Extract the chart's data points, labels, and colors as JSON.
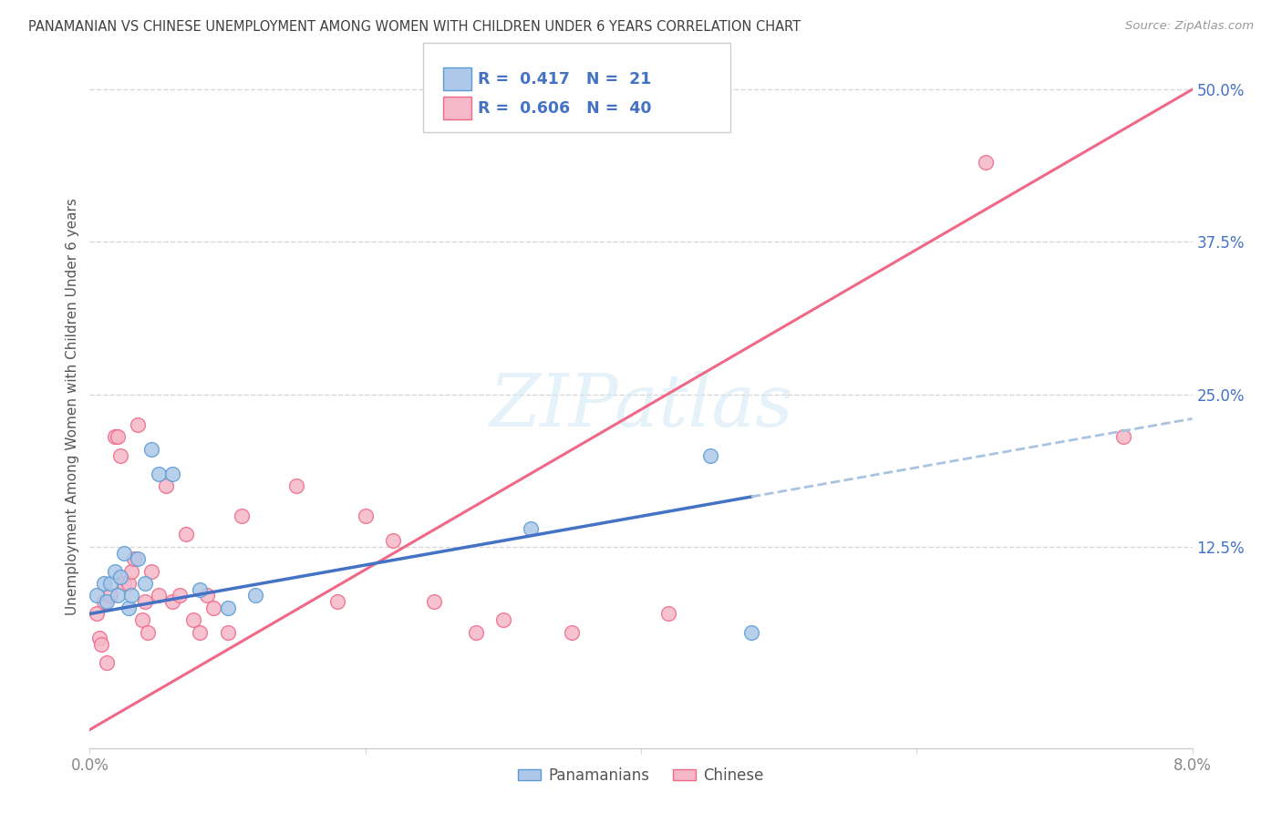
{
  "title": "PANAMANIAN VS CHINESE UNEMPLOYMENT AMONG WOMEN WITH CHILDREN UNDER 6 YEARS CORRELATION CHART",
  "source": "Source: ZipAtlas.com",
  "ylabel": "Unemployment Among Women with Children Under 6 years",
  "xlim": [
    0.0,
    8.0
  ],
  "ylim": [
    -4.0,
    52.0
  ],
  "yticks_right": [
    12.5,
    25.0,
    37.5,
    50.0
  ],
  "ytick_labels_right": [
    "12.5%",
    "25.0%",
    "37.5%",
    "50.0%"
  ],
  "legend_R1": "0.417",
  "legend_N1": "21",
  "legend_R2": "0.606",
  "legend_N2": "40",
  "panamanian_color": "#adc8e8",
  "chinese_color": "#f5b8c8",
  "panamanian_edge_color": "#5b9bd5",
  "chinese_edge_color": "#f06888",
  "panamanian_line_color": "#4472c4",
  "chinese_line_color": "#f06888",
  "blue_dashed_color": "#a8c4e0",
  "pan_line_x0": 0.0,
  "pan_line_y0": 7.0,
  "pan_line_x1": 8.0,
  "pan_line_y1": 23.0,
  "pan_solid_x1": 4.8,
  "chi_line_x0": 0.0,
  "chi_line_y0": -2.5,
  "chi_line_x1": 8.0,
  "chi_line_y1": 50.0,
  "panamanian_x": [
    0.05,
    0.1,
    0.12,
    0.15,
    0.18,
    0.2,
    0.22,
    0.25,
    0.28,
    0.3,
    0.35,
    0.4,
    0.45,
    0.5,
    0.6,
    0.8,
    1.0,
    1.2,
    3.2,
    4.5,
    4.8
  ],
  "panamanian_y": [
    8.5,
    9.5,
    8.0,
    9.5,
    10.5,
    8.5,
    10.0,
    12.0,
    7.5,
    8.5,
    11.5,
    9.5,
    20.5,
    18.5,
    18.5,
    9.0,
    7.5,
    8.5,
    14.0,
    20.0,
    5.5
  ],
  "chinese_x": [
    0.05,
    0.07,
    0.08,
    0.1,
    0.12,
    0.15,
    0.18,
    0.2,
    0.22,
    0.25,
    0.28,
    0.3,
    0.32,
    0.35,
    0.38,
    0.4,
    0.42,
    0.45,
    0.5,
    0.55,
    0.6,
    0.65,
    0.7,
    0.75,
    0.8,
    0.85,
    0.9,
    1.0,
    1.1,
    1.5,
    1.8,
    2.0,
    2.2,
    2.5,
    2.8,
    3.0,
    3.5,
    4.2,
    6.5,
    7.5
  ],
  "chinese_y": [
    7.0,
    5.0,
    4.5,
    8.0,
    3.0,
    8.5,
    21.5,
    21.5,
    20.0,
    9.5,
    9.5,
    10.5,
    11.5,
    22.5,
    6.5,
    8.0,
    5.5,
    10.5,
    8.5,
    17.5,
    8.0,
    8.5,
    13.5,
    6.5,
    5.5,
    8.5,
    7.5,
    5.5,
    15.0,
    17.5,
    8.0,
    15.0,
    13.0,
    8.0,
    5.5,
    6.5,
    5.5,
    7.0,
    44.0,
    21.5
  ],
  "background_color": "#ffffff",
  "grid_color": "#d8d8d8",
  "title_color": "#404040",
  "label_color": "#555555",
  "legend_text_color": "#4472c4",
  "tick_color": "#888888"
}
